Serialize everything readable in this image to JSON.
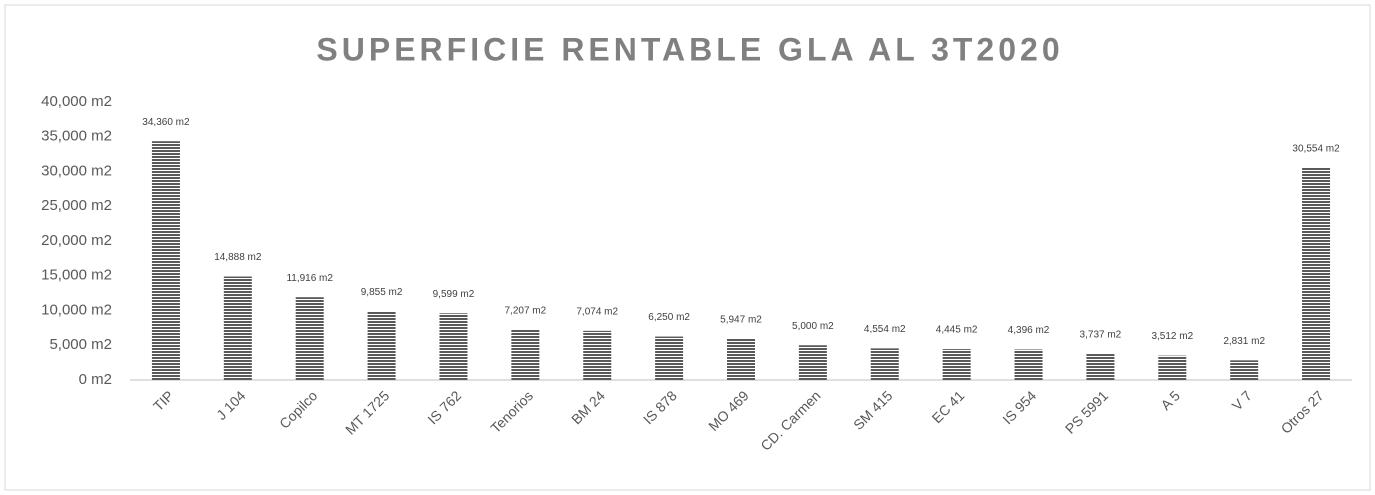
{
  "chart_data": {
    "type": "bar",
    "title": "SUPERFICIE RENTABLE GLA AL 3T2020",
    "categories": [
      "TIP",
      "J 104",
      "Copilco",
      "MT 1725",
      "IS 762",
      "Tenorios",
      "BM 24",
      "IS 878",
      "MO 469",
      "CD. Carmen",
      "SM 415",
      "EC 41",
      "IS 954",
      "PS 5991",
      "A 5",
      "V 7",
      "Otros 27"
    ],
    "values": [
      34360,
      14888,
      11916,
      9855,
      9599,
      7207,
      7074,
      6250,
      5947,
      5000,
      4554,
      4445,
      4396,
      3737,
      3512,
      2831,
      30554
    ],
    "value_labels": [
      "34,360 m2",
      "14,888 m2",
      "11,916 m2",
      "9,855 m2",
      "9,599 m2",
      "7,207 m2",
      "7,074 m2",
      "6,250 m2",
      "5,947 m2",
      "5,000 m2",
      "4,554 m2",
      "4,445 m2",
      "4,396 m2",
      "3,737 m2",
      "3,512 m2",
      "2,831 m2",
      "30,554 m2"
    ],
    "color": "#595959",
    "ylim": [
      0,
      40000
    ],
    "yticks": [
      {
        "value": 0,
        "label": "0 m2"
      },
      {
        "value": 5000,
        "label": "5,000 m2"
      },
      {
        "value": 10000,
        "label": "10,000 m2"
      },
      {
        "value": 15000,
        "label": "15,000 m2"
      },
      {
        "value": 20000,
        "label": "20,000 m2"
      },
      {
        "value": 25000,
        "label": "25,000 m2"
      },
      {
        "value": 30000,
        "label": "30,000 m2"
      },
      {
        "value": 35000,
        "label": "35,000 m2"
      },
      {
        "value": 40000,
        "label": "40,000 m2"
      }
    ],
    "grid": false
  }
}
